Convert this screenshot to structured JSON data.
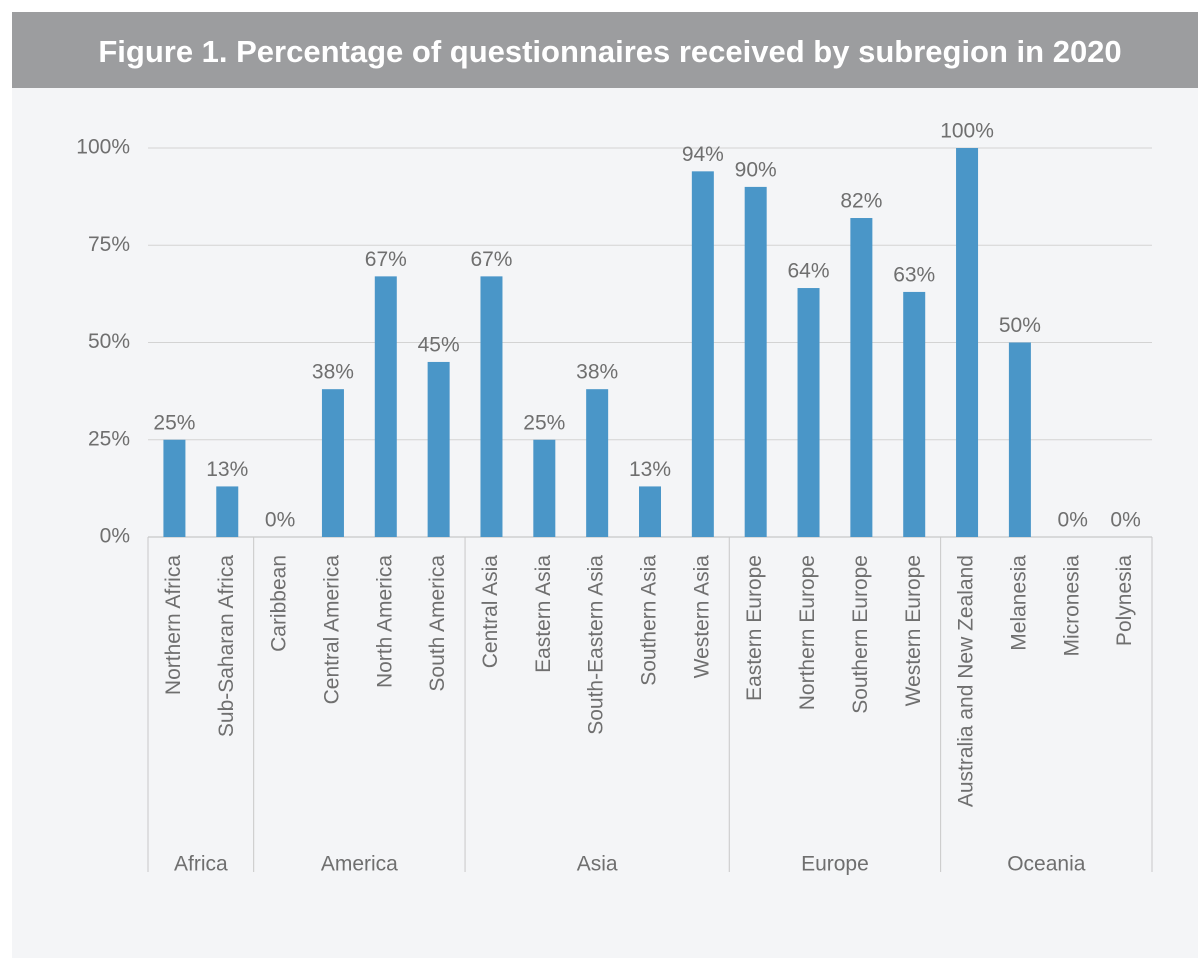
{
  "chart_data": {
    "type": "bar",
    "title": "Figure 1. Percentage of questionnaires received by subregion in 2020",
    "groups": [
      {
        "name": "Africa",
        "categories": [
          "Northern Africa",
          "Sub-Saharan Africa"
        ],
        "values": [
          25,
          13
        ],
        "value_labels": [
          "25%",
          "13%"
        ]
      },
      {
        "name": "America",
        "categories": [
          "Caribbean",
          "Central America",
          "North America",
          "South America"
        ],
        "values": [
          0,
          38,
          67,
          45
        ],
        "value_labels": [
          "0%",
          "38%",
          "67%",
          "45%"
        ]
      },
      {
        "name": "Asia",
        "categories": [
          "Central Asia",
          "Eastern Asia",
          "South-Eastern Asia",
          "Southern Asia",
          "Western Asia"
        ],
        "values": [
          67,
          25,
          38,
          13,
          94
        ],
        "value_labels": [
          "67%",
          "25%",
          "38%",
          "13%",
          "94%"
        ]
      },
      {
        "name": "Europe",
        "categories": [
          "Eastern Europe",
          "Northern Europe",
          "Southern Europe",
          "Western Europe"
        ],
        "values": [
          90,
          64,
          82,
          63
        ],
        "value_labels": [
          "90%",
          "64%",
          "82%",
          "63%"
        ]
      },
      {
        "name": "Oceania",
        "categories": [
          "Australia and New Zealand",
          "Melanesia",
          "Micronesia",
          "Polynesia"
        ],
        "values": [
          100,
          50,
          0,
          0
        ],
        "value_labels": [
          "100%",
          "50%",
          "0%",
          "0%"
        ]
      }
    ],
    "color": "#4a96c8",
    "ylim": [
      0,
      100
    ],
    "yticks": [
      {
        "value": 0,
        "label": "0%"
      },
      {
        "value": 25,
        "label": "25%"
      },
      {
        "value": 50,
        "label": "50%"
      },
      {
        "value": 75,
        "label": "75%"
      },
      {
        "value": 100,
        "label": "100%"
      }
    ],
    "grid": true
  }
}
